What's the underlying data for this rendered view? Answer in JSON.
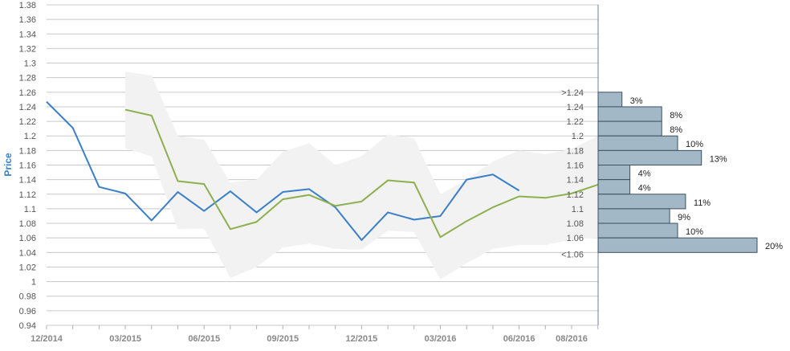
{
  "chart_data": {
    "type": "line",
    "ylabel": "Price",
    "xlabel": "",
    "ylim": [
      0.94,
      1.38
    ],
    "y_ticks": [
      "0.94",
      "0.96",
      "0.98",
      "1",
      "1.02",
      "1.04",
      "1.06",
      "1.08",
      "1.1",
      "1.12",
      "1.14",
      "1.16",
      "1.18",
      "1.2",
      "1.22",
      "1.24",
      "1.26",
      "1.28",
      "1.3",
      "1.32",
      "1.34",
      "1.36",
      "1.38"
    ],
    "x_ticks": [
      "12/2014",
      "03/2015",
      "06/2015",
      "09/2015",
      "12/2015",
      "03/2016",
      "06/2016",
      "08/2016"
    ],
    "grid": true,
    "series": [
      {
        "color": "#3a7fc8",
        "points": [
          [
            "2014-12",
            1.247
          ],
          [
            "2015-01",
            1.211
          ],
          [
            "2015-02",
            1.13
          ],
          [
            "2015-03",
            1.121
          ],
          [
            "2015-04",
            1.084
          ],
          [
            "2015-05",
            1.123
          ],
          [
            "2015-06",
            1.097
          ],
          [
            "2015-07",
            1.124
          ],
          [
            "2015-08",
            1.095
          ],
          [
            "2015-09",
            1.123
          ],
          [
            "2015-10",
            1.127
          ],
          [
            "2015-11",
            1.102
          ],
          [
            "2015-12",
            1.057
          ],
          [
            "2016-01",
            1.095
          ],
          [
            "2016-02",
            1.085
          ],
          [
            "2016-03",
            1.09
          ],
          [
            "2016-04",
            1.14
          ],
          [
            "2016-05",
            1.147
          ],
          [
            "2016-06",
            1.125
          ]
        ]
      },
      {
        "color": "#8db04e",
        "points": [
          [
            "2015-03",
            1.236
          ],
          [
            "2015-04",
            1.228
          ],
          [
            "2015-05",
            1.138
          ],
          [
            "2015-06",
            1.134
          ],
          [
            "2015-07",
            1.072
          ],
          [
            "2015-08",
            1.082
          ],
          [
            "2015-09",
            1.113
          ],
          [
            "2015-10",
            1.119
          ],
          [
            "2015-11",
            1.104
          ],
          [
            "2015-12",
            1.11
          ],
          [
            "2016-01",
            1.139
          ],
          [
            "2016-02",
            1.136
          ],
          [
            "2016-03",
            1.061
          ],
          [
            "2016-04",
            1.083
          ],
          [
            "2016-05",
            1.102
          ],
          [
            "2016-06",
            1.117
          ],
          [
            "2016-07",
            1.115
          ],
          [
            "2016-08",
            1.121
          ],
          [
            "2016-09",
            1.133
          ]
        ]
      }
    ],
    "band": {
      "color": "#f2f2f2",
      "upper": [
        [
          "2015-03",
          1.288
        ],
        [
          "2015-04",
          1.283
        ],
        [
          "2015-05",
          1.2
        ],
        [
          "2015-06",
          1.195
        ],
        [
          "2015-07",
          1.136
        ],
        [
          "2015-08",
          1.14
        ],
        [
          "2015-09",
          1.178
        ],
        [
          "2015-10",
          1.19
        ],
        [
          "2015-11",
          1.16
        ],
        [
          "2015-12",
          1.172
        ],
        [
          "2016-01",
          1.202
        ],
        [
          "2016-02",
          1.197
        ],
        [
          "2016-03",
          1.12
        ],
        [
          "2016-04",
          1.14
        ],
        [
          "2016-05",
          1.165
        ],
        [
          "2016-06",
          1.18
        ],
        [
          "2016-07",
          1.175
        ],
        [
          "2016-08",
          1.182
        ],
        [
          "2016-09",
          1.2
        ]
      ],
      "lower": [
        [
          "2015-03",
          1.183
        ],
        [
          "2015-04",
          1.172
        ],
        [
          "2015-05",
          1.072
        ],
        [
          "2015-06",
          1.073
        ],
        [
          "2015-07",
          1.005
        ],
        [
          "2015-08",
          1.02
        ],
        [
          "2015-09",
          1.047
        ],
        [
          "2015-10",
          1.052
        ],
        [
          "2015-11",
          1.045
        ],
        [
          "2015-12",
          1.044
        ],
        [
          "2016-01",
          1.07
        ],
        [
          "2016-02",
          1.068
        ],
        [
          "2016-03",
          1.003
        ],
        [
          "2016-04",
          1.025
        ],
        [
          "2016-05",
          1.045
        ],
        [
          "2016-06",
          1.05
        ],
        [
          "2016-07",
          1.05
        ],
        [
          "2016-08",
          1.058
        ],
        [
          "2016-09",
          1.06
        ]
      ]
    },
    "histogram": {
      "color": "#a2b8c7",
      "border": "#3d5060",
      "bins": [
        {
          "label": ">1.24",
          "y_low": 1.24,
          "y_high": 1.26,
          "value": 3,
          "text": "3%"
        },
        {
          "label": "1.24",
          "y_low": 1.22,
          "y_high": 1.24,
          "value": 8,
          "text": "8%"
        },
        {
          "label": "1.22",
          "y_low": 1.2,
          "y_high": 1.22,
          "value": 8,
          "text": "8%"
        },
        {
          "label": "1.2",
          "y_low": 1.18,
          "y_high": 1.2,
          "value": 10,
          "text": "10%"
        },
        {
          "label": "1.18",
          "y_low": 1.16,
          "y_high": 1.18,
          "value": 13,
          "text": "13%"
        },
        {
          "label": "1.16",
          "y_low": 1.14,
          "y_high": 1.16,
          "value": 4,
          "text": "4%"
        },
        {
          "label": "1.14",
          "y_low": 1.12,
          "y_high": 1.14,
          "value": 4,
          "text": "4%"
        },
        {
          "label": "1.12",
          "y_low": 1.1,
          "y_high": 1.12,
          "value": 11,
          "text": "11%"
        },
        {
          "label": "1.1",
          "y_low": 1.08,
          "y_high": 1.1,
          "value": 9,
          "text": "9%"
        },
        {
          "label": "1.08",
          "y_low": 1.06,
          "y_high": 1.08,
          "value": 10,
          "text": "10%"
        },
        {
          "label": "1.06",
          "y_low": 1.04,
          "y_high": 1.06,
          "value": 20,
          "text": "20%"
        },
        {
          "label": "<1.06",
          "y_low": 1.04,
          "y_high": 1.04,
          "value": 0,
          "text": ""
        }
      ]
    }
  }
}
